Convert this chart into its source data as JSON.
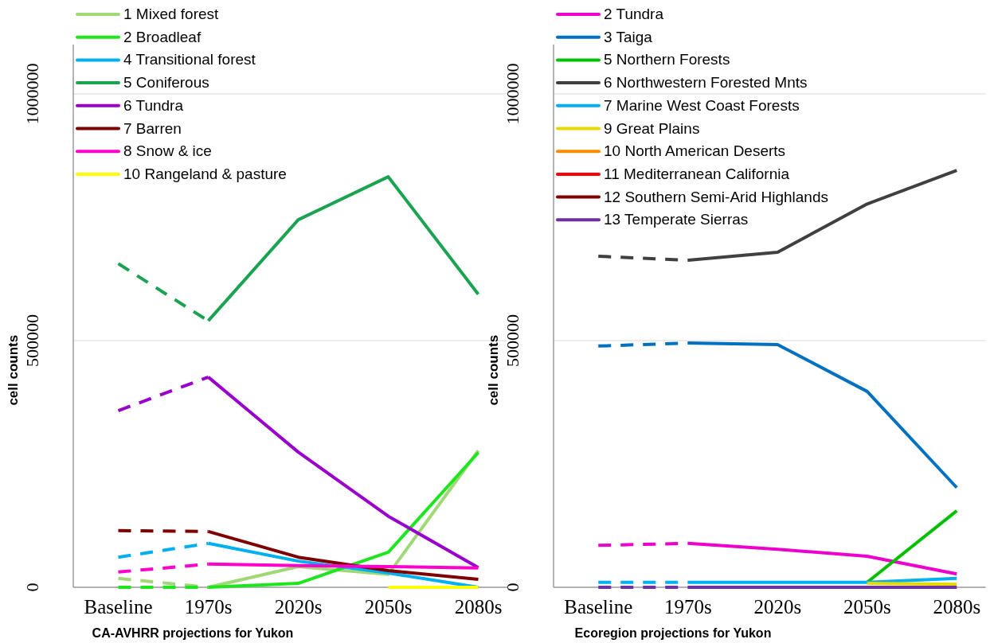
{
  "chart_data": [
    {
      "type": "line",
      "categories": [
        "Baseline",
        "1970s",
        "2020s",
        "2050s",
        "2080s"
      ],
      "xlabel": "CA-AVHRR projections for Yukon",
      "ylabel": "cell counts",
      "ylim": [
        0,
        1100000
      ],
      "yticks": [
        0,
        500000,
        1000000
      ],
      "grid": "y",
      "legend": "top left",
      "series": [
        {
          "name": "1 Mixed forest",
          "color": "#9fd874",
          "values": [
            null,
            0,
            42000,
            26000,
            277000
          ]
        },
        {
          "name": "2 Broadleaf",
          "color": "#1ee61e",
          "values": [
            null,
            0,
            8000,
            71000,
            273000
          ]
        },
        {
          "name": "4 Transitional forest",
          "color": "#00b0f0",
          "values": [
            null,
            89000,
            53000,
            29000,
            0
          ]
        },
        {
          "name": "5 Coniferous",
          "color": "#1aa350",
          "values": [
            null,
            540000,
            745000,
            832000,
            594000
          ]
        },
        {
          "name": "6 Tundra",
          "color": "#9900cc",
          "values": [
            null,
            426000,
            274000,
            144000,
            40000
          ]
        },
        {
          "name": "7 Barren",
          "color": "#7f0000",
          "values": [
            null,
            113000,
            61000,
            34000,
            16000
          ]
        },
        {
          "name": "8 Snow & ice",
          "color": "#ff00cc",
          "values": [
            null,
            47000,
            44000,
            42000,
            39000
          ]
        },
        {
          "name": "10 Rangeland & pasture",
          "color": "#ffff00",
          "values": [
            null,
            null,
            null,
            0,
            0
          ]
        },
        {
          "color": "#9fd874",
          "line_style": "dashed",
          "values": [
            18000,
            0,
            null,
            null,
            null
          ]
        },
        {
          "color": "#1ee61e",
          "line_style": "dashed",
          "values": [
            0,
            0,
            null,
            null,
            null
          ]
        },
        {
          "color": "#00b0f0",
          "line_style": "dashed",
          "values": [
            61000,
            89000,
            null,
            null,
            null
          ]
        },
        {
          "color": "#1aa350",
          "line_style": "dashed",
          "values": [
            656000,
            540000,
            null,
            null,
            null
          ]
        },
        {
          "color": "#9900cc",
          "line_style": "dashed",
          "values": [
            358000,
            426000,
            null,
            null,
            null
          ]
        },
        {
          "color": "#7f0000",
          "line_style": "dashed",
          "values": [
            115000,
            113000,
            null,
            null,
            null
          ]
        },
        {
          "color": "#ff00cc",
          "line_style": "dashed",
          "values": [
            31000,
            47000,
            null,
            null,
            null
          ]
        }
      ]
    },
    {
      "type": "line",
      "categories": [
        "Baseline",
        "1970s",
        "2020s",
        "2050s",
        "2080s"
      ],
      "xlabel": "Ecoregion projections for Yukon",
      "ylabel": "cell counts",
      "ylim": [
        0,
        1100000
      ],
      "yticks": [
        0,
        500000,
        1000000
      ],
      "grid": "y",
      "legend": "top left",
      "series": [
        {
          "name": "2 Tundra",
          "color": "#ee00cc",
          "values": [
            null,
            89000,
            77000,
            63000,
            27000
          ]
        },
        {
          "name": "3 Taiga",
          "color": "#0070c0",
          "values": [
            null,
            495000,
            492000,
            397000,
            202000
          ]
        },
        {
          "name": "5 Northern Forests",
          "color": "#00c000",
          "values": [
            null,
            null,
            null,
            10000,
            155000
          ]
        },
        {
          "name": "6 Northwestern Forested Mnts",
          "color": "#404040",
          "values": [
            null,
            663000,
            679000,
            777000,
            845000
          ]
        },
        {
          "name": "7 Marine West Coast Forests",
          "color": "#00b0f0",
          "values": [
            null,
            10000,
            10000,
            10000,
            18000
          ]
        },
        {
          "name": "9 Great Plains",
          "color": "#e6d800",
          "values": [
            null,
            null,
            null,
            8000,
            6000
          ]
        },
        {
          "name": "10 North American Deserts",
          "color": "#ff8c00",
          "values": [
            null,
            null,
            null,
            null,
            null
          ]
        },
        {
          "name": "11 Mediterranean California",
          "color": "#ff0000",
          "values": [
            null,
            null,
            null,
            null,
            null
          ]
        },
        {
          "name": "12 Southern Semi-Arid Highlands",
          "color": "#7f0000",
          "values": [
            null,
            null,
            null,
            null,
            null
          ]
        },
        {
          "name": "13 Temperate Sierras",
          "color": "#7030a0",
          "values": [
            null,
            0,
            0,
            0,
            0
          ]
        },
        {
          "color": "#ee00cc",
          "line_style": "dashed",
          "values": [
            85000,
            89000,
            null,
            null,
            null
          ]
        },
        {
          "color": "#0070c0",
          "line_style": "dashed",
          "values": [
            489000,
            495000,
            null,
            null,
            null
          ]
        },
        {
          "color": "#404040",
          "line_style": "dashed",
          "values": [
            671000,
            663000,
            null,
            null,
            null
          ]
        },
        {
          "color": "#00b0f0",
          "line_style": "dashed",
          "values": [
            10000,
            10000,
            null,
            null,
            null
          ]
        },
        {
          "color": "#7030a0",
          "line_style": "dashed",
          "values": [
            0,
            0,
            null,
            null,
            null
          ]
        }
      ]
    }
  ]
}
